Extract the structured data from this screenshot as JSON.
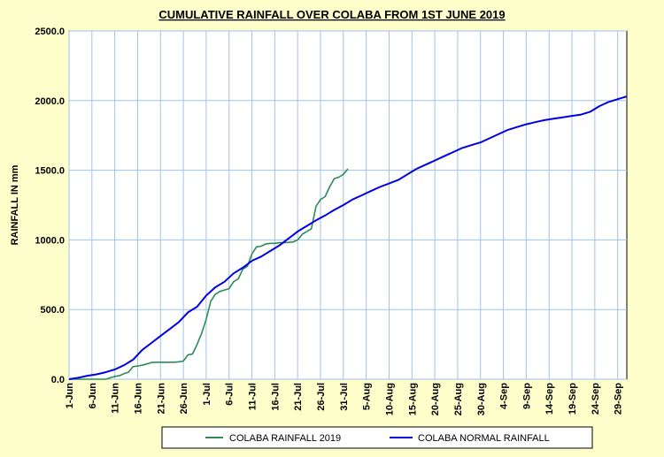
{
  "chart_data": {
    "type": "line",
    "title": "CUMULATIVE RAINFALL OVER COLABA FROM 1ST JUNE 2019",
    "xlabel": "",
    "ylabel": "RAINFALL IN mm",
    "xlim_days": [
      0,
      122
    ],
    "ylim": [
      0,
      2500
    ],
    "y_ticks": [
      "0.0",
      "500.0",
      "1000.0",
      "1500.0",
      "2000.0",
      "2500.0"
    ],
    "y_tick_values": [
      0,
      500,
      1000,
      1500,
      2000,
      2500
    ],
    "x_ticks": [
      "1-Jun",
      "6-Jun",
      "11-Jun",
      "16-Jun",
      "21-Jun",
      "26-Jun",
      "1-Jul",
      "6-Jul",
      "11-Jul",
      "16-Jul",
      "21-Jul",
      "26-Jul",
      "31-Jul",
      "5-Aug",
      "10-Aug",
      "15-Aug",
      "20-Aug",
      "25-Aug",
      "30-Aug",
      "4-Sep",
      "9-Sep",
      "14-Sep",
      "19-Sep",
      "24-Sep",
      "29-Sep"
    ],
    "x_tick_days": [
      0,
      5,
      10,
      15,
      20,
      25,
      30,
      35,
      40,
      45,
      50,
      55,
      60,
      65,
      70,
      75,
      80,
      85,
      90,
      95,
      100,
      105,
      110,
      115,
      120
    ],
    "grid": true,
    "legend_position": "bottom",
    "series": [
      {
        "name": "COLABA RAINFALL 2019",
        "color": "#2e8b57",
        "points": [
          [
            0,
            0
          ],
          [
            8,
            0
          ],
          [
            10,
            20
          ],
          [
            11,
            25
          ],
          [
            12,
            40
          ],
          [
            13,
            50
          ],
          [
            14,
            90
          ],
          [
            15,
            95
          ],
          [
            16,
            100
          ],
          [
            17,
            110
          ],
          [
            18,
            120
          ],
          [
            19,
            122
          ],
          [
            20,
            122
          ],
          [
            21,
            122
          ],
          [
            22,
            122
          ],
          [
            23,
            122
          ],
          [
            24,
            125
          ],
          [
            25,
            130
          ],
          [
            26,
            175
          ],
          [
            27,
            180
          ],
          [
            28,
            250
          ],
          [
            29,
            330
          ],
          [
            30,
            430
          ],
          [
            31,
            560
          ],
          [
            32,
            610
          ],
          [
            33,
            630
          ],
          [
            34,
            640
          ],
          [
            35,
            650
          ],
          [
            36,
            700
          ],
          [
            37,
            720
          ],
          [
            38,
            790
          ],
          [
            39,
            810
          ],
          [
            40,
            900
          ],
          [
            41,
            950
          ],
          [
            42,
            955
          ],
          [
            43,
            970
          ],
          [
            44,
            975
          ],
          [
            45,
            975
          ],
          [
            46,
            980
          ],
          [
            47,
            980
          ],
          [
            48,
            982
          ],
          [
            49,
            985
          ],
          [
            50,
            1000
          ],
          [
            51,
            1040
          ],
          [
            52,
            1060
          ],
          [
            53,
            1080
          ],
          [
            54,
            1240
          ],
          [
            55,
            1290
          ],
          [
            56,
            1310
          ],
          [
            57,
            1380
          ],
          [
            58,
            1440
          ],
          [
            59,
            1450
          ],
          [
            60,
            1470
          ],
          [
            61,
            1510
          ]
        ]
      },
      {
        "name": "COLABA NORMAL RAINFALL",
        "color": "#0000e6",
        "points": [
          [
            0,
            0
          ],
          [
            2,
            10
          ],
          [
            4,
            25
          ],
          [
            6,
            35
          ],
          [
            8,
            50
          ],
          [
            10,
            70
          ],
          [
            12,
            100
          ],
          [
            14,
            140
          ],
          [
            16,
            210
          ],
          [
            18,
            260
          ],
          [
            20,
            310
          ],
          [
            22,
            360
          ],
          [
            24,
            410
          ],
          [
            26,
            480
          ],
          [
            28,
            520
          ],
          [
            30,
            600
          ],
          [
            32,
            660
          ],
          [
            34,
            700
          ],
          [
            36,
            760
          ],
          [
            38,
            800
          ],
          [
            40,
            850
          ],
          [
            42,
            880
          ],
          [
            44,
            920
          ],
          [
            46,
            960
          ],
          [
            48,
            1010
          ],
          [
            50,
            1060
          ],
          [
            52,
            1100
          ],
          [
            54,
            1140
          ],
          [
            56,
            1175
          ],
          [
            58,
            1215
          ],
          [
            60,
            1250
          ],
          [
            62,
            1290
          ],
          [
            64,
            1320
          ],
          [
            66,
            1350
          ],
          [
            68,
            1380
          ],
          [
            70,
            1405
          ],
          [
            72,
            1430
          ],
          [
            74,
            1470
          ],
          [
            76,
            1510
          ],
          [
            78,
            1540
          ],
          [
            80,
            1570
          ],
          [
            82,
            1600
          ],
          [
            84,
            1630
          ],
          [
            86,
            1660
          ],
          [
            88,
            1680
          ],
          [
            90,
            1700
          ],
          [
            92,
            1730
          ],
          [
            94,
            1760
          ],
          [
            96,
            1790
          ],
          [
            98,
            1810
          ],
          [
            100,
            1830
          ],
          [
            102,
            1845
          ],
          [
            104,
            1860
          ],
          [
            106,
            1870
          ],
          [
            108,
            1880
          ],
          [
            110,
            1890
          ],
          [
            112,
            1900
          ],
          [
            114,
            1920
          ],
          [
            116,
            1960
          ],
          [
            118,
            1990
          ],
          [
            120,
            2010
          ],
          [
            122,
            2030
          ]
        ]
      }
    ]
  }
}
